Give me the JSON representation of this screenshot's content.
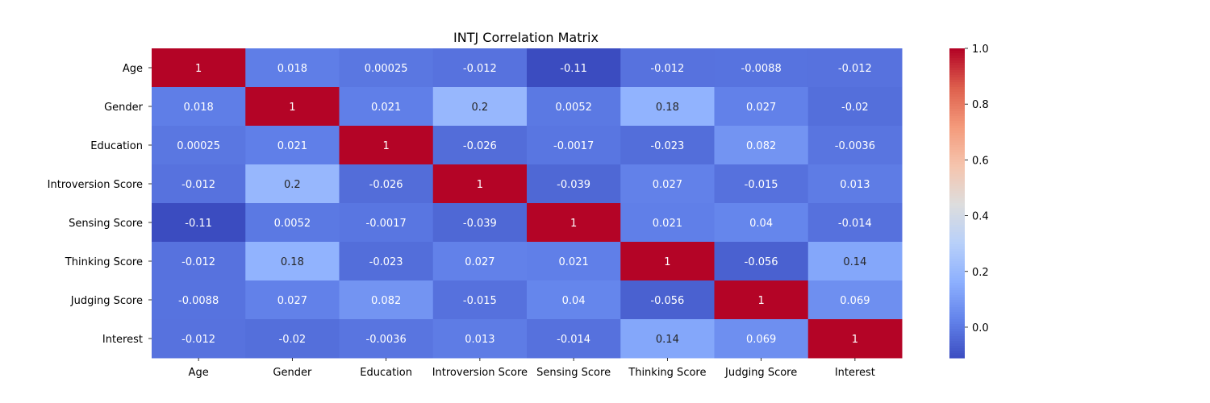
{
  "chart_data": {
    "type": "heatmap",
    "title": "INTJ Correlation Matrix",
    "labels": [
      "Age",
      "Gender",
      "Education",
      "Introversion Score",
      "Sensing Score",
      "Thinking Score",
      "Judging Score",
      "Interest"
    ],
    "values": [
      [
        1,
        0.018,
        0.00025,
        -0.012,
        -0.11,
        -0.012,
        -0.0088,
        -0.012
      ],
      [
        0.018,
        1,
        0.021,
        0.2,
        0.0052,
        0.18,
        0.027,
        -0.02
      ],
      [
        0.00025,
        0.021,
        1,
        -0.026,
        -0.0017,
        -0.023,
        0.082,
        -0.0036
      ],
      [
        -0.012,
        0.2,
        -0.026,
        1,
        -0.039,
        0.027,
        -0.015,
        0.013
      ],
      [
        -0.11,
        0.0052,
        -0.0017,
        -0.039,
        1,
        0.021,
        0.04,
        -0.014
      ],
      [
        -0.012,
        0.18,
        -0.023,
        0.027,
        0.021,
        1,
        -0.056,
        0.14
      ],
      [
        -0.0088,
        0.027,
        0.082,
        -0.015,
        0.04,
        -0.056,
        1,
        0.069
      ],
      [
        -0.012,
        -0.02,
        -0.0036,
        0.013,
        -0.014,
        0.14,
        0.069,
        1
      ]
    ],
    "cell_labels": [
      [
        "1",
        "0.018",
        "0.00025",
        "-0.012",
        "-0.11",
        "-0.012",
        "-0.0088",
        "-0.012"
      ],
      [
        "0.018",
        "1",
        "0.021",
        "0.2",
        "0.0052",
        "0.18",
        "0.027",
        "-0.02"
      ],
      [
        "0.00025",
        "0.021",
        "1",
        "-0.026",
        "-0.0017",
        "-0.023",
        "0.082",
        "-0.0036"
      ],
      [
        "-0.012",
        "0.2",
        "-0.026",
        "1",
        "-0.039",
        "0.027",
        "-0.015",
        "0.013"
      ],
      [
        "-0.11",
        "0.0052",
        "-0.0017",
        "-0.039",
        "1",
        "0.021",
        "0.04",
        "-0.014"
      ],
      [
        "-0.012",
        "0.18",
        "-0.023",
        "0.027",
        "0.021",
        "1",
        "-0.056",
        "0.14"
      ],
      [
        "-0.0088",
        "0.027",
        "0.082",
        "-0.015",
        "0.04",
        "-0.056",
        "1",
        "0.069"
      ],
      [
        "-0.012",
        "-0.02",
        "-0.0036",
        "0.013",
        "-0.014",
        "0.14",
        "0.069",
        "1"
      ]
    ],
    "colormap": "coolwarm",
    "vmin": -0.11,
    "vmax": 1.0,
    "colorbar_ticks": [
      "0.0",
      "0.2",
      "0.4",
      "0.6",
      "0.8",
      "1.0"
    ],
    "colorbar_tick_values": [
      0,
      0.2,
      0.4,
      0.6,
      0.8,
      1.0
    ],
    "legend_placement": "right",
    "grid": false
  }
}
